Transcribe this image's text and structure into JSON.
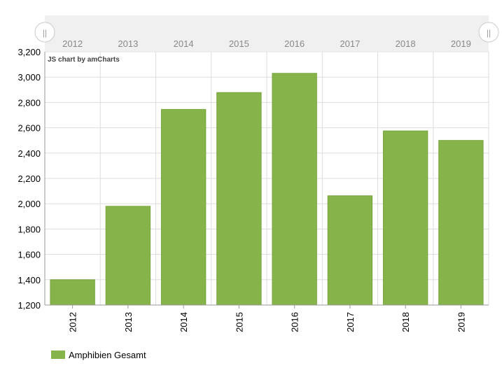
{
  "credit": "JS chart by amCharts",
  "colors": {
    "bar": "#86b34a",
    "bar_stroke": "#7aa53f",
    "grid": "#dddddd",
    "axis": "#9a9a9a",
    "scrollbar_bg": "#f0f0f0"
  },
  "scrollbar": {
    "labels": [
      "2012",
      "2013",
      "2014",
      "2015",
      "2016",
      "2017",
      "2018",
      "2019"
    ],
    "handle_glyph": "||"
  },
  "chart_data": {
    "type": "bar",
    "categories": [
      "2012",
      "2013",
      "2014",
      "2015",
      "2016",
      "2017",
      "2018",
      "2019"
    ],
    "series": [
      {
        "name": "Amphibien Gesamt",
        "values": [
          1400,
          1980,
          2745,
          2878,
          3030,
          2063,
          2575,
          2500
        ]
      }
    ],
    "ylim": [
      1200,
      3200
    ],
    "yticks": [
      "1,200",
      "1,400",
      "1,600",
      "1,800",
      "2,000",
      "2,200",
      "2,400",
      "2,600",
      "2,800",
      "3,000",
      "3,200"
    ],
    "grid": true,
    "legend_position": "bottom-left",
    "title": "",
    "xlabel": "",
    "ylabel": ""
  }
}
